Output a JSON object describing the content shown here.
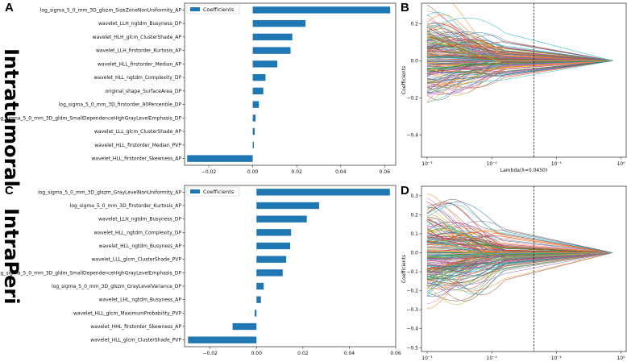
{
  "side_labels": [
    "Intratumoral",
    "IntraPeri"
  ],
  "bar_color": "#1f77b4",
  "chart_data": [
    {
      "panel": "A",
      "type": "bar",
      "orientation": "horizontal",
      "legend": "Coefficients",
      "categories": [
        "log_sigma_5_0_mm_3D_glszm_SizeZoneNonUniformity_AP",
        "wavelet_LLH_ngtdm_Busyness_DP",
        "wavelet_HLH_glcm_ClusterShade_AP",
        "wavelet_LLH_firstorder_Kurtosis_AP",
        "wavelet_HLL_firstorder_Median_AP",
        "wavelet_HLL_ngtdm_Complexity_DP",
        "original_shape_SurfaceArea_DP",
        "log_sigma_5_0_mm_3D_firstorder_90Percentile_DP",
        "log_sigma_5_0_mm_3D_gldm_SmallDependenceHighGrayLevelEmphasis_DP",
        "wavelet_LLL_glcm_ClusterShade_AP",
        "wavelet_HLL_firstorder_Median_PVP",
        "wavelet_HLL_firstorder_Skewness_AP"
      ],
      "values": [
        0.0625,
        0.024,
        0.018,
        0.0172,
        0.0112,
        0.0058,
        0.0048,
        0.0028,
        0.0013,
        0.0009,
        0.0005,
        -0.0298
      ],
      "xlim": [
        -0.031,
        0.065
      ],
      "xticks": [
        -0.02,
        0.0,
        0.02,
        0.04,
        0.06
      ],
      "xtick_labels": [
        "−0.02",
        "0.00",
        "0.02",
        "0.04",
        "0.06"
      ]
    },
    {
      "panel": "B",
      "type": "line",
      "xscale": "log",
      "xlabel": "Lambda(λ=0.0450)",
      "ylabel": "Coefficients",
      "xlim": [
        0.00082,
        1.2
      ],
      "ylim": [
        -0.52,
        0.31
      ],
      "xticks": [
        0.001,
        0.01,
        0.1,
        1
      ],
      "xtick_labels": [
        "10⁻³",
        "10⁻²",
        "10⁻¹",
        "10⁰"
      ],
      "yticks": [
        -0.4,
        -0.2,
        0.0,
        0.2
      ],
      "ytick_labels": [
        "−0.4",
        "−0.2",
        "0.0",
        "0.2"
      ],
      "lambda_line": 0.045,
      "path_count": 200,
      "y_spread": 0.29
    },
    {
      "panel": "C",
      "type": "bar",
      "orientation": "horizontal",
      "legend": "Coefficients",
      "categories": [
        "log_sigma_5_0_mm_3D_glszm_GrayLevelNonUniformity_AP",
        "log_sigma_5_0_mm_3D_firstorder_Kurtosis_AP",
        "wavelet_LLH_ngtdm_Busyness_DP",
        "wavelet_HLL_ngtdm_Complexity_DP",
        "wavelet_HLL_ngtdm_Busyness_AP",
        "wavelet_LLL_glcm_ClusterShade_PVP",
        "log_sigma_5_0_mm_3D_gldm_SmallDependenceHighGrayLevelEmphasis_DP",
        "log_sigma_5_0_mm_3D_glszm_GrayLevelVariance_DP",
        "wavelet_LHL_ngtdm_Busyness_AP",
        "wavelet_HLL_glcm_MaximumProbability_PVP",
        "wavelet_HHL_firstorder_Skewness_AP",
        "wavelet_HLL_glcm_ClusterShade_PVP"
      ],
      "values": [
        0.0575,
        0.027,
        0.0217,
        0.0149,
        0.0145,
        0.0128,
        0.0113,
        0.0031,
        0.0019,
        -0.0008,
        -0.0103,
        -0.0295
      ],
      "xlim": [
        -0.031,
        0.06
      ],
      "xticks": [
        -0.02,
        0.0,
        0.02,
        0.04,
        0.06
      ],
      "xtick_labels": [
        "−0.02",
        "0.00",
        "0.02",
        "0.04",
        "0.06"
      ]
    },
    {
      "panel": "D",
      "type": "line",
      "xscale": "log",
      "xlabel": "Lambda(λ=0.0450)",
      "ylabel": "Coefficients",
      "xlim": [
        0.00082,
        1.2
      ],
      "ylim": [
        -0.52,
        0.35
      ],
      "xticks": [
        0.001,
        0.01,
        0.1,
        1
      ],
      "xtick_labels": [
        "10⁻³",
        "10⁻²",
        "10⁻¹",
        "10⁰"
      ],
      "yticks": [
        -0.5,
        -0.4,
        -0.3,
        -0.2,
        -0.1,
        0.0,
        0.1,
        0.2,
        0.3
      ],
      "ytick_labels": [
        "−0.5",
        "−0.4",
        "−0.3",
        "−0.2",
        "−0.1",
        "0.0",
        "0.1",
        "0.2",
        "0.3"
      ],
      "lambda_line": 0.045,
      "path_count": 200,
      "y_spread": 0.3
    }
  ]
}
